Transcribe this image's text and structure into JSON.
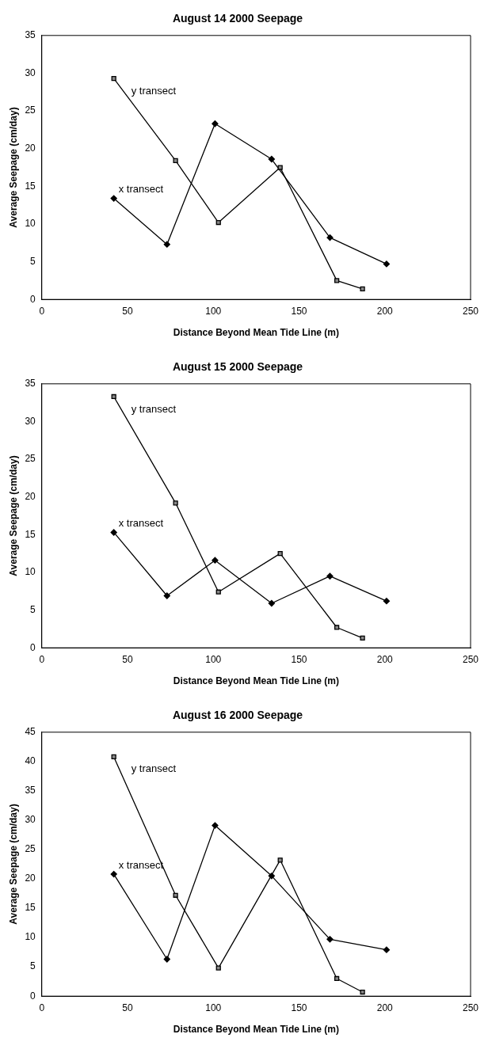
{
  "chart_data": [
    {
      "type": "line",
      "title": "August 14 2000 Seepage",
      "xlabel": "Distance Beyond Mean Tide Line (m)",
      "ylabel": "Average Seepage (cm/day)",
      "xlim": [
        0,
        250
      ],
      "xticks": [
        0,
        50,
        100,
        150,
        200,
        250
      ],
      "ylim": [
        0,
        35
      ],
      "yticks": [
        0,
        5,
        10,
        15,
        20,
        25,
        30,
        35
      ],
      "grid": false,
      "legend": false,
      "series": [
        {
          "name": "y transect",
          "color": "#000000",
          "marker": "square",
          "x": [
            42,
            78,
            103,
            139,
            172,
            187
          ],
          "values": [
            29.3,
            18.4,
            10.2,
            17.5,
            2.5,
            1.4
          ]
        },
        {
          "name": "x transect",
          "color": "#000000",
          "marker": "diamond",
          "x": [
            42,
            73,
            101,
            134,
            168,
            201
          ],
          "values": [
            13.4,
            7.3,
            23.3,
            18.6,
            8.2,
            4.7
          ]
        }
      ]
    },
    {
      "type": "line",
      "title": "August 15 2000 Seepage",
      "xlabel": "Distance Beyond Mean Tide Line (m)",
      "ylabel": "Average Seepage (cm/day)",
      "xlim": [
        0,
        250
      ],
      "xticks": [
        0,
        50,
        100,
        150,
        200,
        250
      ],
      "ylim": [
        0,
        35
      ],
      "yticks": [
        0,
        5,
        10,
        15,
        20,
        25,
        30,
        35
      ],
      "grid": false,
      "legend": false,
      "series": [
        {
          "name": "y transect",
          "color": "#000000",
          "marker": "square",
          "x": [
            42,
            78,
            103,
            139,
            172,
            187
          ],
          "values": [
            33.3,
            19.2,
            7.4,
            12.5,
            2.7,
            1.3
          ]
        },
        {
          "name": "x transect",
          "color": "#000000",
          "marker": "diamond",
          "x": [
            42,
            73,
            101,
            134,
            168,
            201
          ],
          "values": [
            15.3,
            6.9,
            11.6,
            5.9,
            9.5,
            6.2
          ]
        }
      ]
    },
    {
      "type": "line",
      "title": "August 16 2000 Seepage",
      "xlabel": "Distance Beyond Mean Tide Line (m)",
      "ylabel": "Average Seepage (cm/day)",
      "xlim": [
        0,
        250
      ],
      "xticks": [
        0,
        50,
        100,
        150,
        200,
        250
      ],
      "ylim": [
        0,
        45
      ],
      "yticks": [
        0,
        5,
        10,
        15,
        20,
        25,
        30,
        35,
        40,
        45
      ],
      "grid": false,
      "legend": false,
      "series": [
        {
          "name": "y transect",
          "color": "#000000",
          "marker": "square",
          "x": [
            42,
            78,
            103,
            139,
            172,
            187
          ],
          "values": [
            40.8,
            17.2,
            4.8,
            23.2,
            3.0,
            0.7
          ]
        },
        {
          "name": "x transect",
          "color": "#000000",
          "marker": "diamond",
          "x": [
            42,
            73,
            101,
            134,
            168,
            201
          ],
          "values": [
            20.8,
            6.3,
            29.1,
            20.5,
            9.7,
            7.9
          ]
        }
      ]
    }
  ]
}
